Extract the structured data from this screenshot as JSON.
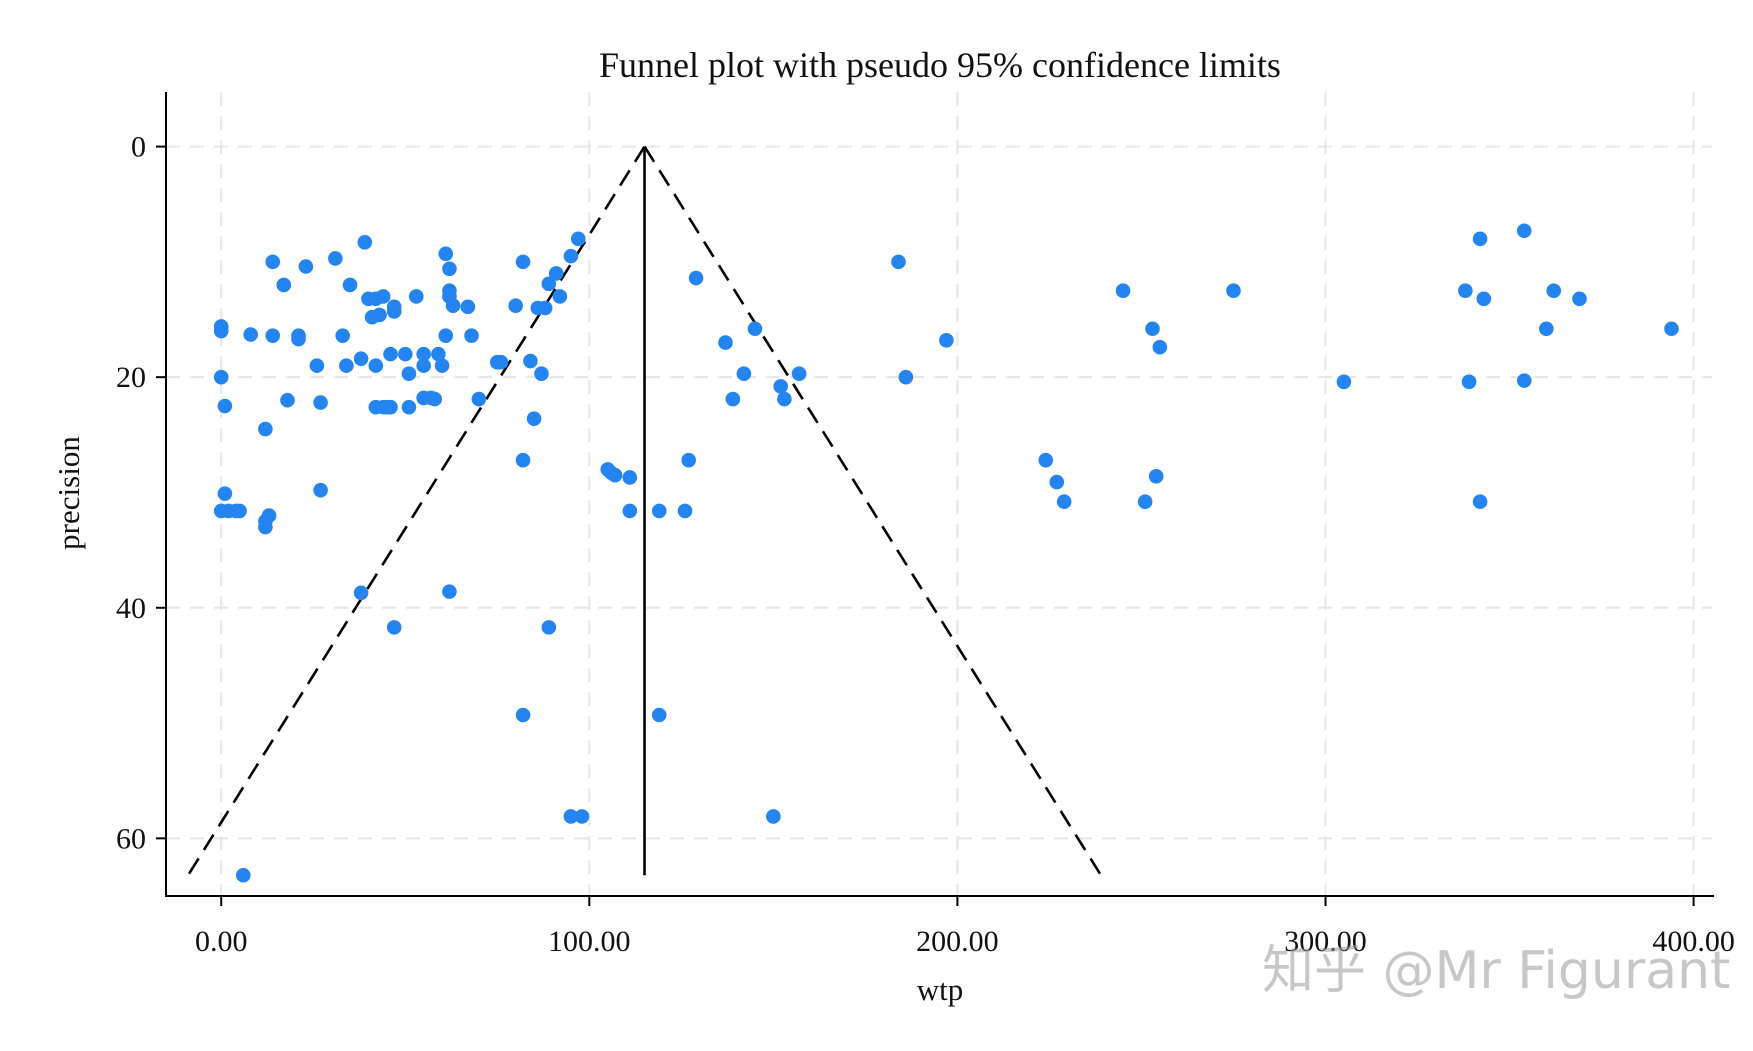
{
  "chart_data": {
    "type": "scatter",
    "title": "Funnel plot with pseudo 95% confidence limits",
    "xlabel": "wtp",
    "ylabel": "precision",
    "xlim": [
      -15,
      405
    ],
    "ylim": [
      65,
      -3
    ],
    "y_reversed": true,
    "x_ticks": [
      0,
      100,
      200,
      300,
      400
    ],
    "x_tick_labels": [
      "0.00",
      "100.00",
      "200.00",
      "300.00",
      "400.00"
    ],
    "y_ticks": [
      0,
      20,
      40,
      60
    ],
    "y_tick_labels": [
      "0",
      "20",
      "40",
      "60"
    ],
    "grid": true,
    "marker_color": "#2585f0",
    "line_color": "#000000",
    "pooled_estimate": 115,
    "funnel": {
      "apex": [
        115,
        0
      ],
      "left_end": [
        -9,
        63.2
      ],
      "right_end": [
        239,
        63.2
      ]
    },
    "points": [
      [
        0,
        15.6
      ],
      [
        0,
        16
      ],
      [
        0,
        20
      ],
      [
        1,
        30.1
      ],
      [
        1,
        22.5
      ],
      [
        0,
        31.6
      ],
      [
        2,
        31.6
      ],
      [
        4,
        31.6
      ],
      [
        5,
        31.6
      ],
      [
        6,
        63.2
      ],
      [
        8,
        16.3
      ],
      [
        12,
        24.5
      ],
      [
        12,
        32.5
      ],
      [
        12,
        33
      ],
      [
        13,
        32
      ],
      [
        14,
        16.4
      ],
      [
        14,
        10
      ],
      [
        17,
        12
      ],
      [
        18,
        22
      ],
      [
        21,
        16.7
      ],
      [
        21,
        16.4
      ],
      [
        23,
        10.4
      ],
      [
        26,
        19
      ],
      [
        27,
        22.2
      ],
      [
        27,
        29.8
      ],
      [
        31,
        9.7
      ],
      [
        33,
        16.4
      ],
      [
        34,
        19
      ],
      [
        35,
        12
      ],
      [
        38,
        38.7
      ],
      [
        38,
        18.4
      ],
      [
        39,
        8.3
      ],
      [
        40,
        13.2
      ],
      [
        41,
        14.8
      ],
      [
        42,
        13.2
      ],
      [
        42,
        19
      ],
      [
        42,
        22.6
      ],
      [
        43,
        14.6
      ],
      [
        44,
        13
      ],
      [
        44,
        22.6
      ],
      [
        45,
        22.6
      ],
      [
        46,
        22.6
      ],
      [
        46,
        18
      ],
      [
        47,
        14.3
      ],
      [
        47,
        13.9
      ],
      [
        47,
        41.7
      ],
      [
        50,
        18
      ],
      [
        51,
        19.7
      ],
      [
        51,
        22.6
      ],
      [
        53,
        13
      ],
      [
        55,
        18
      ],
      [
        55,
        19
      ],
      [
        55,
        21.8
      ],
      [
        57,
        21.8
      ],
      [
        58,
        21.9
      ],
      [
        59,
        18
      ],
      [
        60,
        19
      ],
      [
        61,
        9.3
      ],
      [
        61,
        16.4
      ],
      [
        62,
        10.6
      ],
      [
        62,
        13
      ],
      [
        62,
        12.5
      ],
      [
        62,
        38.6
      ],
      [
        63,
        13.8
      ],
      [
        67,
        13.9
      ],
      [
        68,
        16.4
      ],
      [
        70,
        21.9
      ],
      [
        75,
        18.7
      ],
      [
        76,
        18.7
      ],
      [
        80,
        13.8
      ],
      [
        82,
        10
      ],
      [
        82,
        27.2
      ],
      [
        82,
        49.3
      ],
      [
        84,
        18.6
      ],
      [
        85,
        23.6
      ],
      [
        86,
        14
      ],
      [
        87,
        19.7
      ],
      [
        88,
        14
      ],
      [
        89,
        11.9
      ],
      [
        89,
        41.7
      ],
      [
        91,
        11
      ],
      [
        92,
        13
      ],
      [
        95,
        9.5
      ],
      [
        95,
        58.1
      ],
      [
        97,
        8
      ],
      [
        98,
        58.1
      ],
      [
        105,
        28
      ],
      [
        106,
        28.3
      ],
      [
        107,
        28.5
      ],
      [
        111,
        28.7
      ],
      [
        111,
        31.6
      ],
      [
        119,
        31.6
      ],
      [
        119,
        49.3
      ],
      [
        126,
        31.6
      ],
      [
        127,
        27.2
      ],
      [
        129,
        11.4
      ],
      [
        137,
        17
      ],
      [
        139,
        21.9
      ],
      [
        142,
        19.7
      ],
      [
        145,
        15.8
      ],
      [
        150,
        58.1
      ],
      [
        152,
        20.8
      ],
      [
        153,
        21.9
      ],
      [
        157,
        19.7
      ],
      [
        184,
        10
      ],
      [
        186,
        20
      ],
      [
        197,
        16.8
      ],
      [
        224,
        27.2
      ],
      [
        227,
        29.1
      ],
      [
        229,
        30.8
      ],
      [
        245,
        12.5
      ],
      [
        251,
        30.8
      ],
      [
        253,
        15.8
      ],
      [
        254,
        28.6
      ],
      [
        255,
        17.4
      ],
      [
        275,
        12.5
      ],
      [
        305,
        20.4
      ],
      [
        338,
        12.5
      ],
      [
        339,
        20.4
      ],
      [
        342,
        8
      ],
      [
        342,
        30.8
      ],
      [
        343,
        13.2
      ],
      [
        354,
        7.3
      ],
      [
        354,
        20.3
      ],
      [
        360,
        15.8
      ],
      [
        362,
        12.5
      ],
      [
        369,
        13.2
      ],
      [
        394,
        15.8
      ]
    ]
  },
  "watermark": "知乎 @Mr Figurant"
}
